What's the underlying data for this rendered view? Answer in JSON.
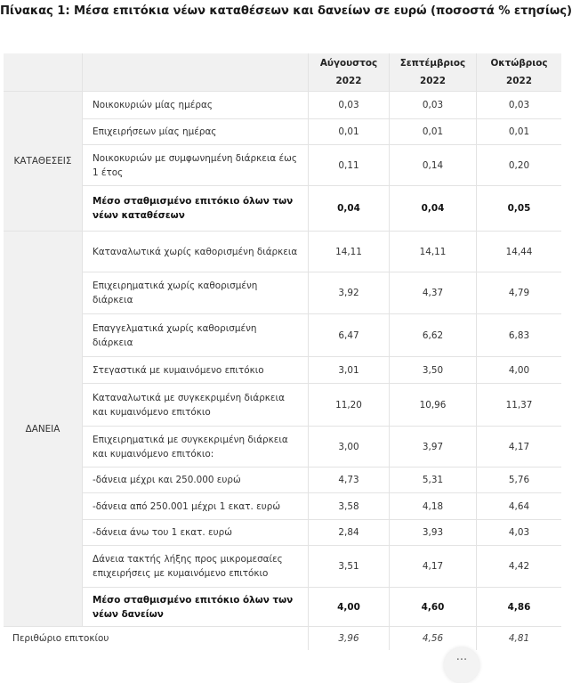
{
  "title": "Πίνακας 1: Μέσα επιτόκια νέων καταθέσεων και δανείων σε ευρώ (ποσοστά % ετησίως)",
  "columns": [
    {
      "month": "Αύγουστος",
      "year": "2022"
    },
    {
      "month": "Σεπτέμβριος",
      "year": "2022"
    },
    {
      "month": "Οκτώβριος",
      "year": "2022"
    }
  ],
  "sections": {
    "deposits": {
      "label": "ΚΑΤΑΘΕΣΕΙΣ",
      "rows": [
        {
          "label": "Νοικοκυριών μίας ημέρας",
          "values": [
            "0,03",
            "0,03",
            "0,03"
          ]
        },
        {
          "label": "Επιχειρήσεων μίας ημέρας",
          "values": [
            "0,01",
            "0,01",
            "0,01"
          ]
        },
        {
          "label": "Νοικοκυριών με συμφωνημένη διάρκεια έως 1 έτος",
          "values": [
            "0,11",
            "0,14",
            "0,20"
          ]
        },
        {
          "label": "Μέσο σταθμισμένο επιτόκιο όλων των νέων καταθέσεων",
          "values": [
            "0,04",
            "0,04",
            "0,05"
          ]
        }
      ]
    },
    "loans": {
      "label": "ΔΑΝΕΙΑ",
      "rows": [
        {
          "label": "Καταναλωτικά χωρίς καθορισμένη διάρκεια",
          "values": [
            "14,11",
            "14,11",
            "14,44"
          ]
        },
        {
          "label": "Επιχειρηματικά χωρίς καθορισμένη διάρκεια",
          "values": [
            "3,92",
            "4,37",
            "4,79"
          ]
        },
        {
          "label": "Επαγγελματικά χωρίς καθορισμένη διάρκεια",
          "values": [
            "6,47",
            "6,62",
            "6,83"
          ]
        },
        {
          "label": "Στεγαστικά με κυμαινόμενο επιτόκιο",
          "values": [
            "3,01",
            "3,50",
            "4,00"
          ]
        },
        {
          "label": "Καταναλωτικά με συγκεκριμένη διάρκεια και κυμαινόμενο επιτόκιο",
          "values": [
            "11,20",
            "10,96",
            "11,37"
          ]
        },
        {
          "label": "Επιχειρηματικά με συγκεκριμένη διάρκεια και κυμαινόμενο επιτόκιο:",
          "values": [
            "3,00",
            "3,97",
            "4,17"
          ]
        },
        {
          "label": "-δάνεια μέχρι και 250.000 ευρώ",
          "values": [
            "4,73",
            "5,31",
            "5,76"
          ]
        },
        {
          "label": "-δάνεια από 250.001 μέχρι 1 εκατ. ευρώ",
          "values": [
            "3,58",
            "4,18",
            "4,64"
          ]
        },
        {
          "label": "-δάνεια άνω του 1 εκατ. ευρώ",
          "values": [
            "2,84",
            "3,93",
            "4,03"
          ]
        },
        {
          "label": "Δάνεια τακτής λήξης προς μικρομεσαίες επιχειρήσεις με κυμαινόμενο επιτόκιο",
          "values": [
            "3,51",
            "4,17",
            "4,42"
          ]
        },
        {
          "label": "Μέσο σταθμισμένο επιτόκιο όλων των νέων δανείων",
          "values": [
            "4,00",
            "4,60",
            "4,86"
          ]
        }
      ]
    }
  },
  "margin": {
    "label": "Περιθώριο επιτοκίου",
    "values": [
      "3,96",
      "4,56",
      "4,81"
    ]
  },
  "overlay": {
    "dots": "..."
  }
}
